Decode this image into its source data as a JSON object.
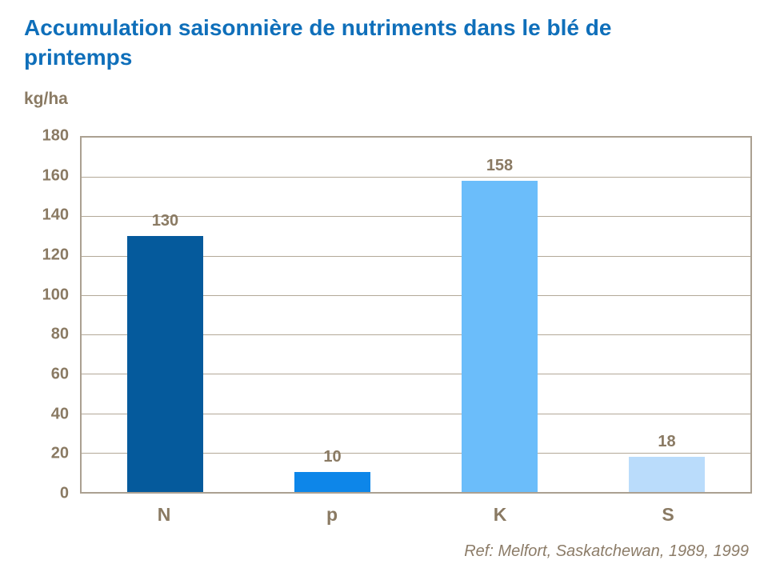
{
  "header": {
    "title": "Accumulation saisonnière de nutriments dans le blé de printemps",
    "unit_label": "kg/ha"
  },
  "footer": {
    "ref_text": "Ref: Melfort, Saskatchewan, 1989, 1999"
  },
  "colors": {
    "title_blue": "#0F6FBA",
    "axis_text_brown": "#8A7A63",
    "grid_line": "#B3A898",
    "plot_border": "#ABA091",
    "background": "#ffffff"
  },
  "chart_data": {
    "type": "bar",
    "categories": [
      "N",
      "p",
      "K",
      "S"
    ],
    "values": [
      130,
      10,
      158,
      18
    ],
    "bar_colors": [
      "#055A9C",
      "#0D86E9",
      "#6BBDFA",
      "#BADCFB"
    ],
    "title": "Accumulation saisonnière de nutriments dans le blé de printemps",
    "xlabel": "",
    "ylabel": "kg/ha",
    "ylim": [
      0,
      180
    ],
    "ytick_step": 20,
    "grid": true,
    "legend": false,
    "data_labels_shown": true
  }
}
